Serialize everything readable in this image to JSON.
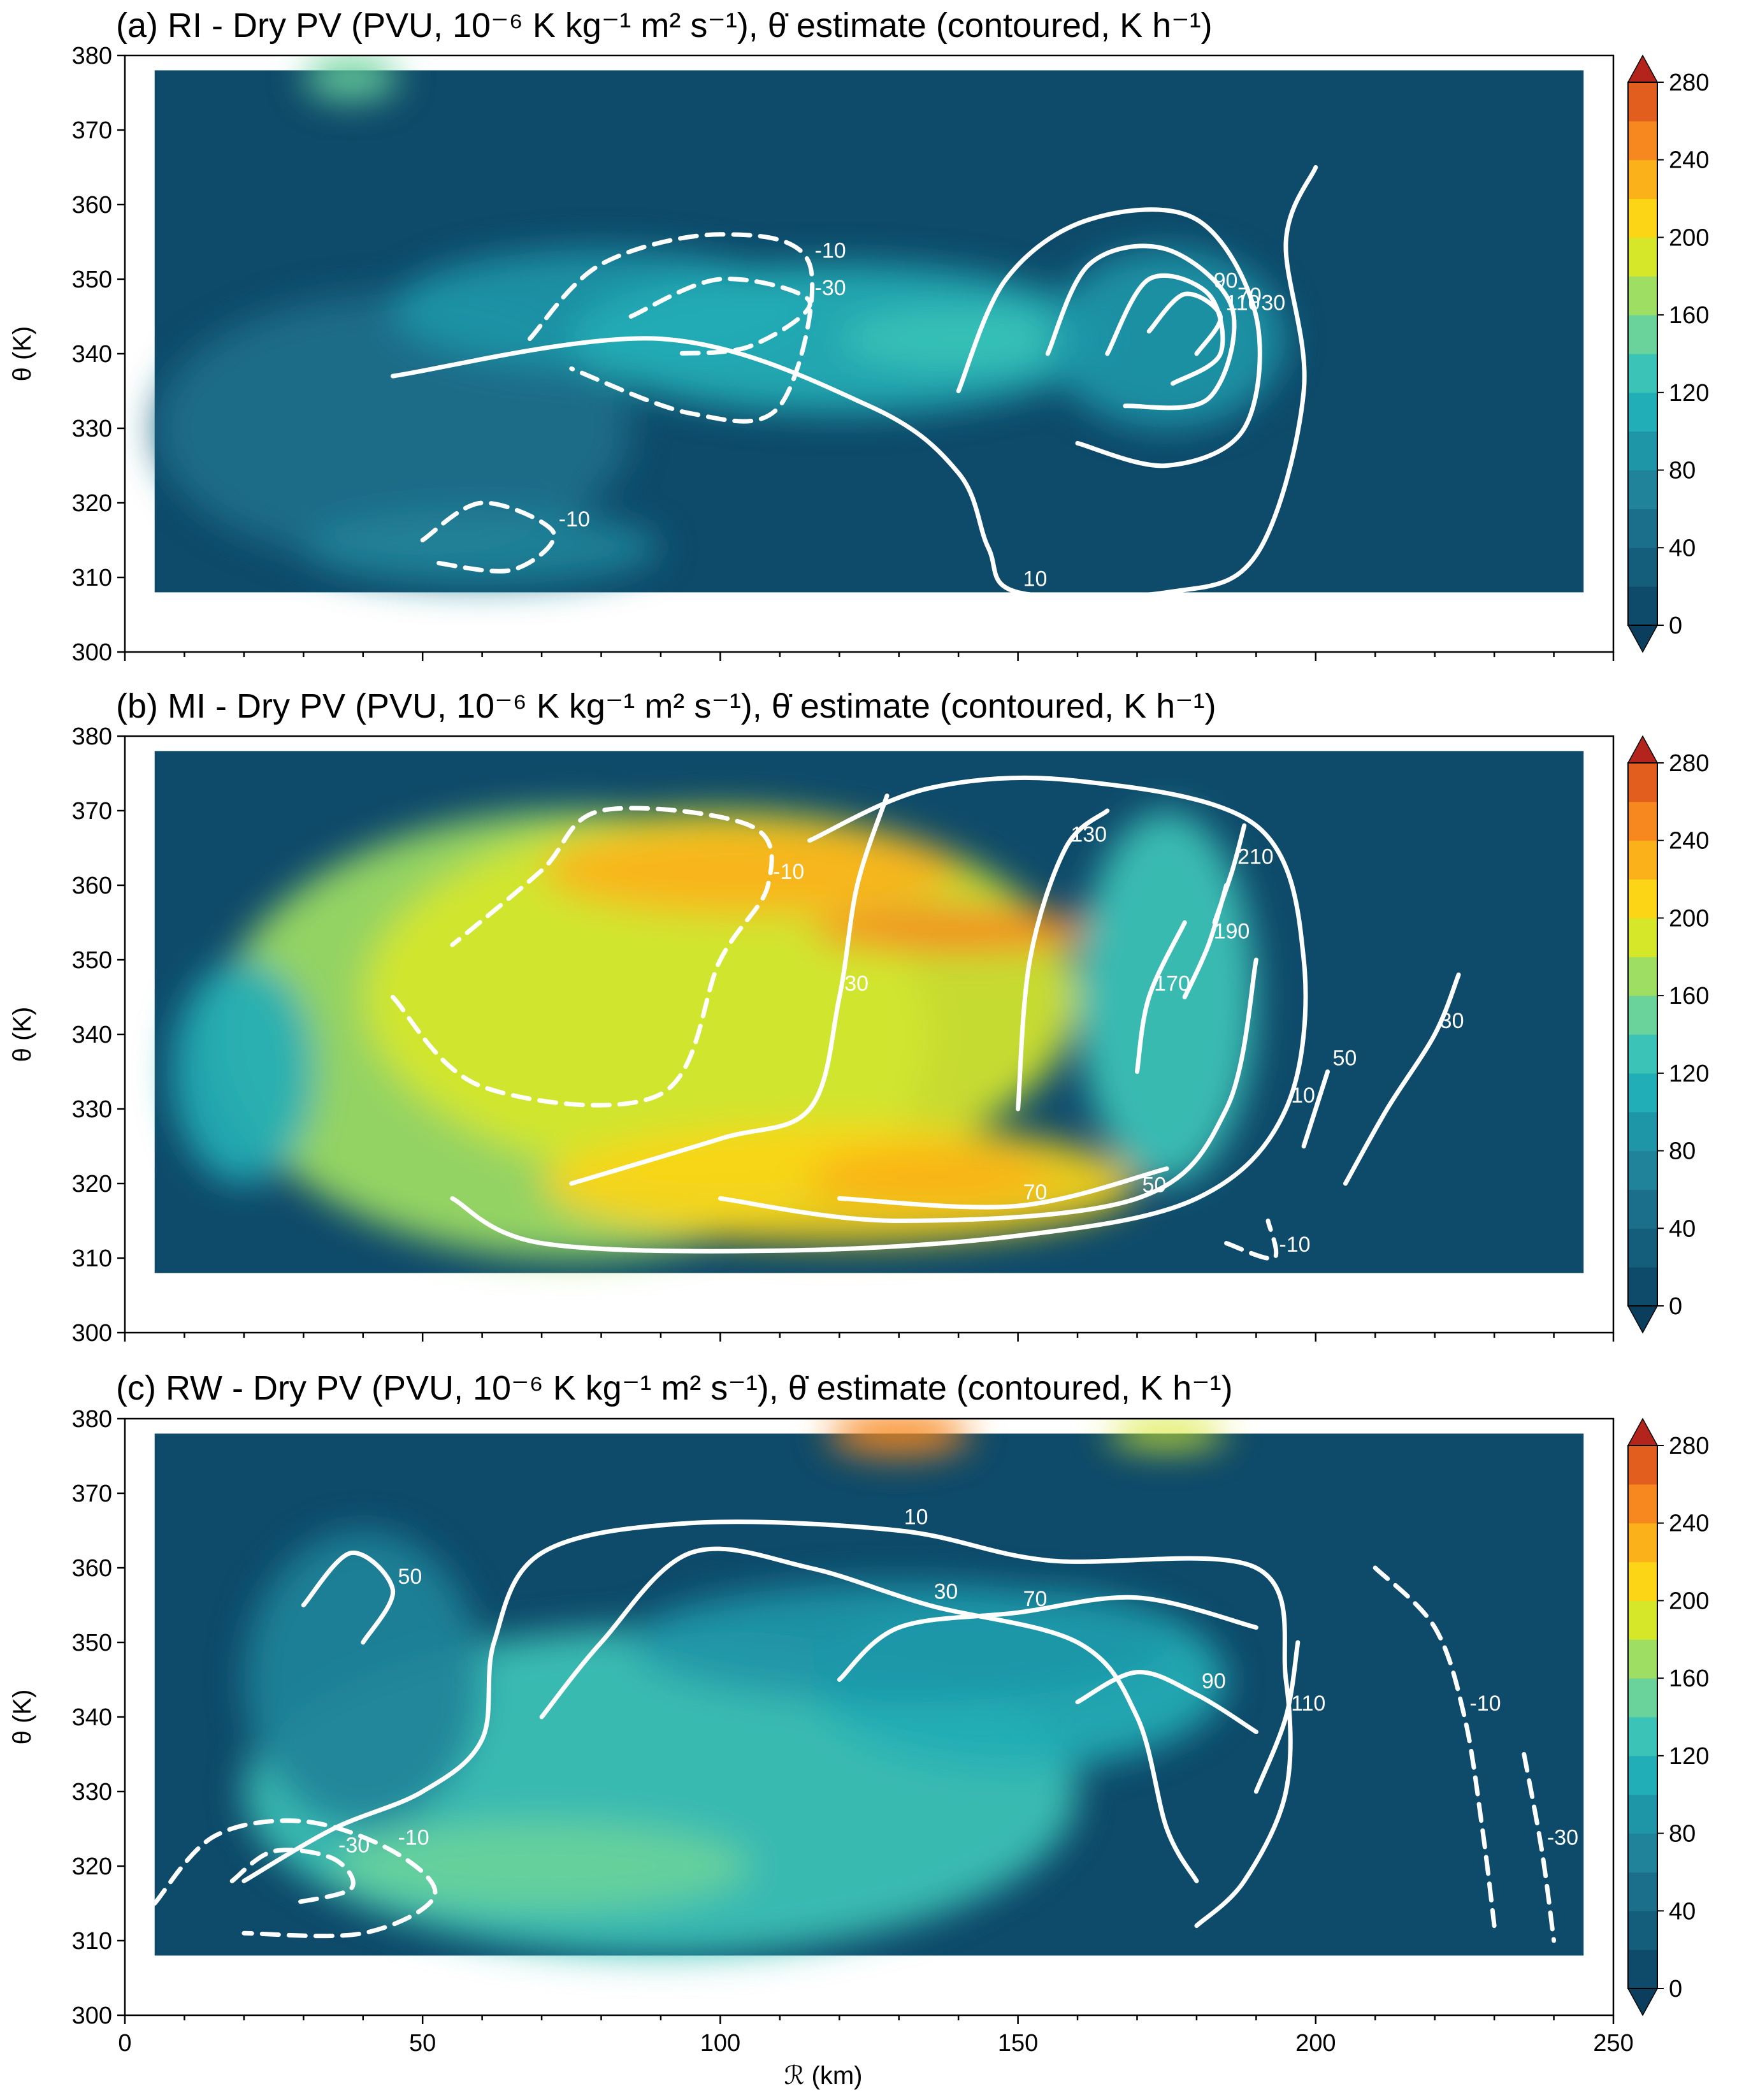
{
  "figure": {
    "xlabel": "ℛ (km)",
    "ylabel": "θ (K)",
    "xticks": [
      0,
      50,
      100,
      150,
      200,
      250
    ],
    "yticks": [
      300,
      310,
      320,
      330,
      340,
      350,
      360,
      370,
      380
    ],
    "colorbar_ticks": [
      0,
      40,
      80,
      120,
      160,
      200,
      240,
      280
    ]
  },
  "chart_data": [
    {
      "type": "heatmap",
      "title": "(a) RI - Dry PV (PVU, 10⁻⁶ K kg⁻¹ m² s⁻¹), θ̇ estimate (contoured, K h⁻¹)",
      "xlabel": "",
      "ylabel": "θ (K)",
      "xlim": [
        0,
        250
      ],
      "ylim": [
        300,
        380
      ],
      "colorbar": {
        "min": 0,
        "max": 280,
        "step": 20,
        "extend": "both"
      },
      "pv_field": [
        {
          "x": 45,
          "y": 330,
          "rx": 40,
          "ry": 18,
          "value": 40
        },
        {
          "x": 80,
          "y": 346,
          "rx": 35,
          "ry": 8,
          "value": 80
        },
        {
          "x": 120,
          "y": 342,
          "rx": 45,
          "ry": 10,
          "value": 100
        },
        {
          "x": 140,
          "y": 342,
          "rx": 20,
          "ry": 4,
          "value": 120
        },
        {
          "x": 175,
          "y": 342,
          "rx": 20,
          "ry": 12,
          "value": 80
        },
        {
          "x": 60,
          "y": 314,
          "rx": 30,
          "ry": 5,
          "value": 60
        },
        {
          "x": 38,
          "y": 377,
          "rx": 8,
          "ry": 3,
          "value": 140
        }
      ],
      "contours": [
        {
          "level": 10,
          "style": "solid",
          "points": [
            [
              45,
              337
            ],
            [
              90,
              342
            ],
            [
              125,
              333
            ],
            [
              140,
              324
            ],
            [
              145,
              314
            ],
            [
              150,
              308
            ],
            [
              175,
              308
            ],
            [
              190,
              313
            ],
            [
              198,
              335
            ],
            [
              195,
              355
            ],
            [
              200,
              365
            ]
          ]
        },
        {
          "level": 30,
          "style": "solid",
          "points": [
            [
              140,
              335
            ],
            [
              148,
              350
            ],
            [
              162,
              358
            ],
            [
              180,
              358
            ],
            [
              190,
              345
            ],
            [
              188,
              330
            ],
            [
              175,
              325
            ],
            [
              160,
              328
            ]
          ]
        },
        {
          "level": 70,
          "style": "solid",
          "points": [
            [
              155,
              340
            ],
            [
              162,
              352
            ],
            [
              175,
              354
            ],
            [
              186,
              346
            ],
            [
              182,
              334
            ],
            [
              168,
              333
            ]
          ]
        },
        {
          "level": 90,
          "style": "solid",
          "points": [
            [
              165,
              340
            ],
            [
              172,
              350
            ],
            [
              182,
              348
            ],
            [
              184,
              340
            ],
            [
              176,
              336
            ]
          ]
        },
        {
          "level": 110,
          "style": "solid",
          "points": [
            [
              172,
              343
            ],
            [
              178,
              348
            ],
            [
              184,
              345
            ],
            [
              180,
              340
            ]
          ]
        },
        {
          "level": -10,
          "style": "dashed",
          "points": [
            [
              68,
              342
            ],
            [
              80,
              352
            ],
            [
              100,
              356
            ],
            [
              115,
              352
            ],
            [
              110,
              333
            ],
            [
              95,
              332
            ],
            [
              75,
              338
            ]
          ]
        },
        {
          "level": -30,
          "style": "dashed",
          "points": [
            [
              85,
              345
            ],
            [
              100,
              350
            ],
            [
              115,
              347
            ],
            [
              105,
              341
            ],
            [
              92,
              340
            ]
          ]
        },
        {
          "level": -10,
          "style": "dashed",
          "points": [
            [
              50,
              315
            ],
            [
              60,
              320
            ],
            [
              72,
              316
            ],
            [
              65,
              311
            ],
            [
              52,
              312
            ]
          ]
        }
      ]
    },
    {
      "type": "heatmap",
      "title": "(b) MI - Dry PV (PVU, 10⁻⁶ K kg⁻¹ m² s⁻¹), θ̇ estimate (contoured, K h⁻¹)",
      "xlabel": "",
      "ylabel": "θ (K)",
      "xlim": [
        0,
        250
      ],
      "ylim": [
        300,
        380
      ],
      "colorbar": {
        "min": 0,
        "max": 280,
        "step": 20,
        "extend": "both"
      },
      "pv_field": [
        {
          "x": 75,
          "y": 340,
          "rx": 60,
          "ry": 30,
          "value": 160
        },
        {
          "x": 100,
          "y": 345,
          "rx": 60,
          "ry": 25,
          "value": 180
        },
        {
          "x": 105,
          "y": 362,
          "rx": 35,
          "ry": 6,
          "value": 220
        },
        {
          "x": 120,
          "y": 320,
          "rx": 50,
          "ry": 8,
          "value": 200
        },
        {
          "x": 135,
          "y": 321,
          "rx": 20,
          "ry": 4,
          "value": 230
        },
        {
          "x": 140,
          "y": 354,
          "rx": 25,
          "ry": 3,
          "value": 240
        },
        {
          "x": 175,
          "y": 345,
          "rx": 15,
          "ry": 25,
          "value": 120
        },
        {
          "x": 20,
          "y": 335,
          "rx": 12,
          "ry": 15,
          "value": 100
        }
      ],
      "contours": [
        {
          "level": 10,
          "style": "solid",
          "points": [
            [
              55,
              318
            ],
            [
              70,
              312
            ],
            [
              110,
              311
            ],
            [
              150,
              313
            ],
            [
              180,
              318
            ],
            [
              195,
              330
            ],
            [
              198,
              350
            ],
            [
              190,
              368
            ],
            [
              160,
              374
            ],
            [
              135,
              373
            ],
            [
              115,
              366
            ]
          ]
        },
        {
          "level": 30,
          "style": "solid",
          "points": [
            [
              75,
              320
            ],
            [
              100,
              326
            ],
            [
              115,
              330
            ],
            [
              120,
              345
            ],
            [
              123,
              360
            ],
            [
              128,
              372
            ]
          ]
        },
        {
          "level": 50,
          "style": "solid",
          "points": [
            [
              100,
              318
            ],
            [
              130,
              315
            ],
            [
              170,
              318
            ],
            [
              185,
              330
            ],
            [
              190,
              350
            ]
          ]
        },
        {
          "level": 70,
          "style": "solid",
          "points": [
            [
              120,
              318
            ],
            [
              150,
              317
            ],
            [
              175,
              322
            ]
          ]
        },
        {
          "level": 130,
          "style": "solid",
          "points": [
            [
              150,
              330
            ],
            [
              152,
              350
            ],
            [
              158,
              365
            ],
            [
              165,
              370
            ]
          ]
        },
        {
          "level": 170,
          "style": "solid",
          "points": [
            [
              170,
              335
            ],
            [
              172,
              345
            ],
            [
              178,
              355
            ]
          ]
        },
        {
          "level": 190,
          "style": "solid",
          "points": [
            [
              178,
              345
            ],
            [
              182,
              352
            ],
            [
              185,
              360
            ]
          ]
        },
        {
          "level": 210,
          "style": "solid",
          "points": [
            [
              183,
              355
            ],
            [
              186,
              362
            ],
            [
              188,
              368
            ]
          ]
        },
        {
          "level": -10,
          "style": "dashed",
          "points": [
            [
              45,
              345
            ],
            [
              60,
              333
            ],
            [
              90,
              332
            ],
            [
              100,
              350
            ],
            [
              108,
              360
            ],
            [
              105,
              368
            ],
            [
              80,
              370
            ],
            [
              70,
              362
            ],
            [
              55,
              352
            ]
          ]
        },
        {
          "level": -10,
          "style": "dashed",
          "points": [
            [
              185,
              312
            ],
            [
              193,
              310
            ],
            [
              192,
              315
            ]
          ]
        },
        {
          "level": 30,
          "style": "solid",
          "points": [
            [
              205,
              320
            ],
            [
              212,
              330
            ],
            [
              220,
              340
            ],
            [
              224,
              348
            ]
          ]
        },
        {
          "level": 50,
          "style": "solid",
          "points": [
            [
              198,
              325
            ],
            [
              202,
              335
            ]
          ]
        }
      ]
    },
    {
      "type": "heatmap",
      "title": "(c) RW - Dry PV (PVU, 10⁻⁶ K kg⁻¹ m² s⁻¹), θ̇ estimate (contoured, K h⁻¹)",
      "xlabel": "ℛ (km)",
      "ylabel": "θ (K)",
      "xlim": [
        0,
        250
      ],
      "ylim": [
        300,
        380
      ],
      "colorbar": {
        "min": 0,
        "max": 280,
        "step": 20,
        "extend": "both"
      },
      "pv_field": [
        {
          "x": 90,
          "y": 330,
          "rx": 70,
          "ry": 22,
          "value": 120
        },
        {
          "x": 70,
          "y": 320,
          "rx": 35,
          "ry": 6,
          "value": 150
        },
        {
          "x": 150,
          "y": 345,
          "rx": 35,
          "ry": 12,
          "value": 100
        },
        {
          "x": 130,
          "y": 350,
          "rx": 45,
          "ry": 8,
          "value": 90
        },
        {
          "x": 40,
          "y": 345,
          "rx": 20,
          "ry": 20,
          "value": 70
        },
        {
          "x": 130,
          "y": 378,
          "rx": 12,
          "ry": 3,
          "value": 240
        },
        {
          "x": 175,
          "y": 378,
          "rx": 10,
          "ry": 2,
          "value": 180
        }
      ],
      "contours": [
        {
          "level": 10,
          "style": "solid",
          "points": [
            [
              20,
              318
            ],
            [
              35,
              325
            ],
            [
              50,
              330
            ],
            [
              60,
              337
            ],
            [
              62,
              350
            ],
            [
              70,
              362
            ],
            [
              95,
              366
            ],
            [
              130,
              365
            ],
            [
              155,
              361
            ],
            [
              190,
              360
            ],
            [
              195,
              345
            ],
            [
              195,
              330
            ],
            [
              188,
              318
            ],
            [
              180,
              312
            ]
          ]
        },
        {
          "level": 30,
          "style": "solid",
          "points": [
            [
              70,
              340
            ],
            [
              80,
              350
            ],
            [
              95,
              362
            ],
            [
              115,
              360
            ],
            [
              135,
              355
            ],
            [
              160,
              350
            ],
            [
              170,
              340
            ],
            [
              175,
              325
            ],
            [
              180,
              318
            ]
          ]
        },
        {
          "level": 50,
          "style": "solid",
          "points": [
            [
              30,
              355
            ],
            [
              38,
              362
            ],
            [
              45,
              357
            ],
            [
              40,
              350
            ]
          ]
        },
        {
          "level": 70,
          "style": "solid",
          "points": [
            [
              120,
              345
            ],
            [
              130,
              352
            ],
            [
              150,
              354
            ],
            [
              170,
              356
            ],
            [
              190,
              352
            ]
          ]
        },
        {
          "level": 90,
          "style": "solid",
          "points": [
            [
              160,
              342
            ],
            [
              170,
              346
            ],
            [
              180,
              343
            ],
            [
              190,
              338
            ]
          ]
        },
        {
          "level": 110,
          "style": "solid",
          "points": [
            [
              190,
              330
            ],
            [
              195,
              340
            ],
            [
              197,
              350
            ]
          ]
        },
        {
          "level": -10,
          "style": "dashed",
          "points": [
            [
              5,
              315
            ],
            [
              15,
              324
            ],
            [
              30,
              326
            ],
            [
              45,
              322
            ],
            [
              52,
              316
            ],
            [
              40,
              311
            ],
            [
              20,
              311
            ]
          ]
        },
        {
          "level": -30,
          "style": "dashed",
          "points": [
            [
              18,
              318
            ],
            [
              25,
              322
            ],
            [
              35,
              321
            ],
            [
              38,
              317
            ],
            [
              28,
              315
            ]
          ]
        },
        {
          "level": -10,
          "style": "dashed",
          "points": [
            [
              210,
              360
            ],
            [
              220,
              352
            ],
            [
              225,
              340
            ],
            [
              228,
              325
            ],
            [
              230,
              312
            ]
          ]
        },
        {
          "level": -30,
          "style": "dashed",
          "points": [
            [
              235,
              335
            ],
            [
              238,
              322
            ],
            [
              240,
              310
            ]
          ]
        }
      ]
    }
  ]
}
